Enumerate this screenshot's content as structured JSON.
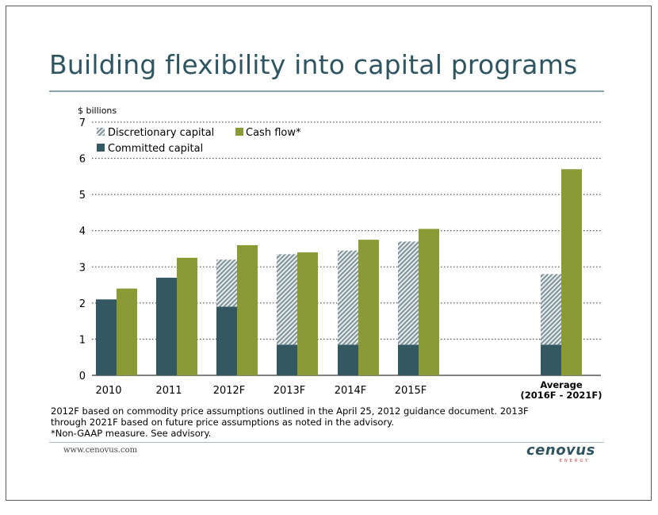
{
  "title": "Building flexibility into capital programs",
  "chart_data": {
    "type": "bar",
    "ylabel": "$ billions",
    "ylim": [
      0,
      7
    ],
    "yticks": [
      0,
      1,
      2,
      3,
      4,
      5,
      6,
      7
    ],
    "grid": true,
    "legend_position": "top-left",
    "categories": [
      "2010",
      "2011",
      "2012F",
      "2013F",
      "2014F",
      "2015F",
      "Average\n(2016F - 2021F)"
    ],
    "series": [
      {
        "name": "Committed capital",
        "stack": "capital",
        "color": "#345862",
        "values": [
          2.1,
          2.7,
          1.9,
          0.85,
          0.85,
          0.85,
          0.85
        ]
      },
      {
        "name": "Discretionary capital",
        "stack": "capital",
        "color": "#8c9da1",
        "pattern": "hatched",
        "values": [
          0,
          0,
          1.3,
          2.5,
          2.6,
          2.85,
          1.95
        ]
      },
      {
        "name": "Cash flow*",
        "stack": "cashflow",
        "color": "#8a9b36",
        "values": [
          2.4,
          3.25,
          3.6,
          3.4,
          3.75,
          4.05,
          5.7
        ]
      }
    ]
  },
  "legend": {
    "discretionary": "Discretionary capital",
    "cashflow": "Cash flow*",
    "committed": "Committed capital"
  },
  "footnote": {
    "line1": "2012F based on commodity price assumptions outlined in the April 25, 2012 guidance document. 2013F",
    "line2": "through 2021F based on future price assumptions as noted in the advisory.",
    "line3": "*Non-GAAP measure. See advisory."
  },
  "footer": {
    "url": "www.cenovus.com",
    "logo_text": "cenovus",
    "logo_sub": "ENERGY"
  },
  "colors": {
    "title": "#2e5560",
    "committed": "#345862",
    "cashflow": "#8a9b36",
    "discretionary_hatch": "#8c9da1"
  }
}
